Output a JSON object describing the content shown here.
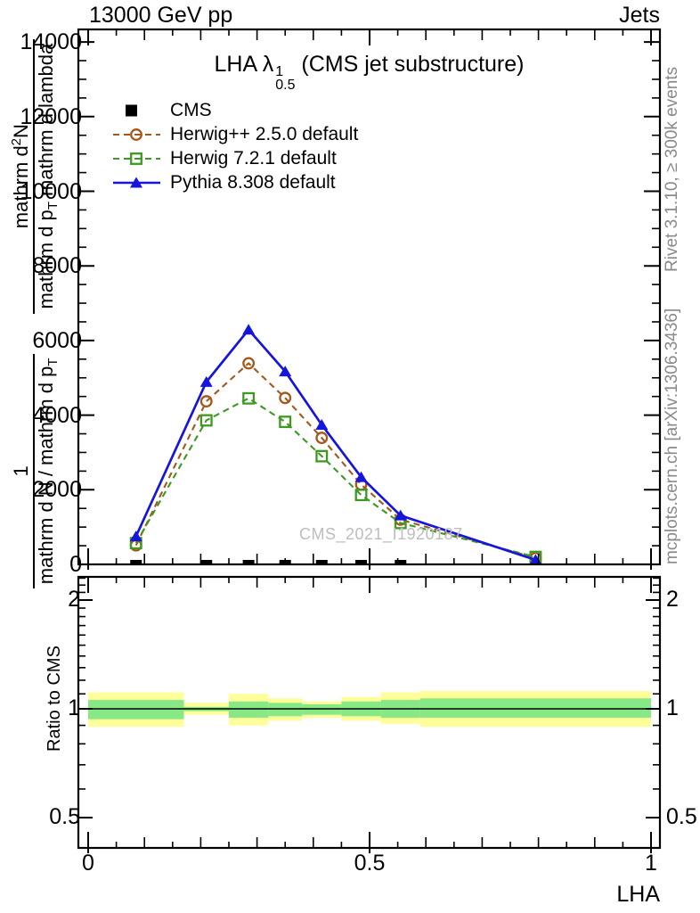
{
  "header": {
    "left": "13000 GeV pp",
    "right": "Jets"
  },
  "title": {
    "pre": "LHA λ",
    "sup": "1",
    "sub": "0.5",
    "post": " (CMS jet substructure)"
  },
  "watermark": "CMS_2021_I1920187",
  "side_notes": {
    "top_right": "Rivet 3.1.10, ≥ 300k events",
    "bottom_right": "mcplots.cern.ch [arXiv:1306.3436]"
  },
  "ylabel": {
    "f1num": "1",
    "f1den": "mathrm d N / mathrm d p",
    "f1den_sub": "T",
    "f2num_pre": "mathrm d",
    "f2num_sup": "2",
    "f2num_post": "N",
    "f2den_a": "mathrm d p",
    "f2den_a_sub": "T",
    "f2den_b": " mathrm d lambda"
  },
  "ratio_ylabel": "Ratio to CMS",
  "xlabel": "LHA",
  "colors": {
    "cms": "#000000",
    "herwigpp": "#a5571c",
    "herwig7": "#3d9922",
    "pythia": "#1515dc",
    "band_yellow": "#ffff9a",
    "band_green": "#86e986",
    "gray_text": "#8a8a8a",
    "watermark_text": "#bdbdbd"
  },
  "chart_data": {
    "type": "line",
    "title": "LHA lambda^1_0.5 (CMS jet substructure)",
    "xlabel": "LHA",
    "xlim": [
      0,
      1
    ],
    "main_panel": {
      "ylim": [
        0,
        14340
      ],
      "y_major_ticks": [
        0,
        2000,
        4000,
        6000,
        8000,
        10000,
        12000,
        14000
      ],
      "y_minor_step": 500,
      "grid": false
    },
    "x_major_ticks": [
      {
        "v": 0,
        "label": "0"
      },
      {
        "v": 0.5,
        "label": "0.5"
      },
      {
        "v": 1,
        "label": "1"
      }
    ],
    "x_minor_step": 0.05,
    "x": [
      0.085,
      0.21,
      0.285,
      0.35,
      0.415,
      0.485,
      0.555,
      0.795
    ],
    "series": [
      {
        "name": "CMS",
        "color": "#000000",
        "line": "none",
        "marker": "filled-square",
        "values": [
          0,
          0,
          0,
          0,
          0,
          0,
          0,
          0
        ]
      },
      {
        "name": "Herwig++ 2.5.0 default",
        "color": "#a5571c",
        "line": "dashed",
        "marker": "open-circle",
        "values": [
          510,
          4370,
          5390,
          4460,
          3390,
          2140,
          1200,
          170
        ]
      },
      {
        "name": "Herwig 7.2.1 default",
        "color": "#3d9922",
        "line": "dashed",
        "marker": "open-square",
        "values": [
          570,
          3860,
          4450,
          3820,
          2900,
          1860,
          1110,
          200
        ]
      },
      {
        "name": "Pythia 8.308 default",
        "color": "#1515dc",
        "line": "solid",
        "marker": "filled-triangle",
        "values": [
          750,
          4890,
          6290,
          5170,
          3740,
          2340,
          1310,
          120
        ]
      }
    ],
    "ratio_panel": {
      "label": "Ratio to CMS",
      "scale": "log2",
      "ylim": [
        0.41,
        2.32
      ],
      "reference_line": 1,
      "y_major_ticks": [
        {
          "v": 2,
          "label": "2"
        },
        {
          "v": 1,
          "label": "1"
        },
        {
          "v": 0.5,
          "label": "0.5"
        }
      ],
      "y_minor_ticks": [
        0.6,
        0.7,
        0.8,
        0.9,
        1.1,
        1.2,
        1.3,
        1.4,
        1.5,
        1.6,
        1.7,
        1.8,
        1.9,
        2.1,
        2.2,
        2.3
      ],
      "bin_edges": [
        0,
        0.17,
        0.25,
        0.32,
        0.38,
        0.45,
        0.52,
        0.59,
        1.0
      ],
      "yellow_band": [
        [
          0.892,
          1.11
        ],
        [
          0.963,
          1.039
        ],
        [
          0.9,
          1.1
        ],
        [
          0.927,
          1.069
        ],
        [
          0.945,
          1.048
        ],
        [
          0.927,
          1.079
        ],
        [
          0.909,
          1.11
        ],
        [
          0.892,
          1.12
        ]
      ],
      "green_band": [
        [
          0.936,
          1.058
        ],
        [
          0.985,
          1.012
        ],
        [
          0.945,
          1.048
        ],
        [
          0.954,
          1.039
        ],
        [
          0.963,
          1.029
        ],
        [
          0.954,
          1.048
        ],
        [
          0.945,
          1.058
        ],
        [
          0.945,
          1.069
        ]
      ]
    }
  }
}
